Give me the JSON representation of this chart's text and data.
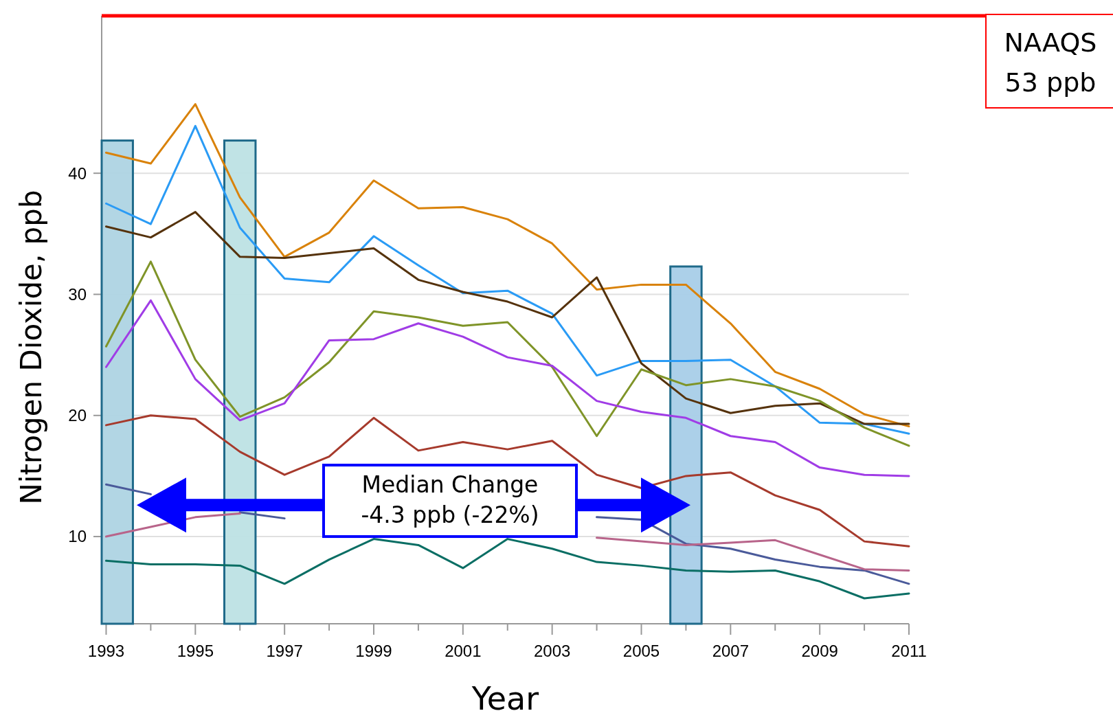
{
  "chart_data": {
    "type": "line",
    "xlabel": "Year",
    "ylabel": "Nitrogen Dioxide, ppb",
    "x": [
      1993,
      1994,
      1995,
      1996,
      1997,
      1998,
      1999,
      2000,
      2001,
      2002,
      2003,
      2004,
      2005,
      2006,
      2007,
      2008,
      2009,
      2010,
      2011
    ],
    "xlim": [
      1992.9,
      2011
    ],
    "ylim": [
      2.8,
      53
    ],
    "xticks": [
      1993,
      {
        "value": 1994,
        "label": null
      },
      1995,
      {
        "value": 1996,
        "label": null
      },
      1997,
      {
        "value": 1998,
        "label": null
      },
      1999,
      {
        "value": 2000,
        "label": null
      },
      2001,
      {
        "value": 2002,
        "label": null
      },
      2003,
      {
        "value": 2004,
        "label": null
      },
      2005,
      {
        "value": 2006,
        "label": null
      },
      2007,
      {
        "value": 2008,
        "label": null
      },
      2009,
      {
        "value": 2010,
        "label": null
      },
      2011
    ],
    "yticks": [
      10,
      20,
      30,
      40
    ],
    "grid": "y",
    "series": [
      {
        "type": "bar",
        "x": [
          1993.25,
          1996,
          2006
        ],
        "values": [
          42.7,
          42.7,
          32.3
        ],
        "colors": [
          "#aed4e3",
          "#bde1e4",
          "#a8cde8"
        ]
      },
      {
        "color": "#d9820a",
        "values": [
          41.7,
          40.8,
          45.7,
          38.0,
          33.1,
          35.1,
          39.4,
          37.1,
          37.2,
          36.2,
          34.2,
          30.4,
          30.8,
          30.8,
          27.6,
          23.6,
          22.2,
          20.1,
          19.1
        ]
      },
      {
        "color": "#2a9bf5",
        "values": [
          37.5,
          35.8,
          43.9,
          35.5,
          31.3,
          31.0,
          34.8,
          32.4,
          30.1,
          30.3,
          28.4,
          23.3,
          24.5,
          24.5,
          24.6,
          22.4,
          19.4,
          19.3,
          18.5
        ]
      },
      {
        "color": "#55320c",
        "values": [
          35.6,
          34.7,
          36.8,
          33.1,
          33.0,
          33.4,
          33.8,
          31.2,
          30.2,
          29.4,
          28.1,
          31.4,
          24.3,
          21.4,
          20.2,
          20.8,
          21.0,
          19.3,
          19.3
        ]
      },
      {
        "color": "#7f9428",
        "values": [
          25.7,
          32.7,
          24.6,
          19.9,
          21.5,
          24.4,
          28.6,
          28.1,
          27.4,
          27.7,
          24.0,
          18.3,
          23.8,
          22.5,
          23.0,
          22.4,
          21.2,
          19.0,
          17.5
        ]
      },
      {
        "color": "#a03ce6",
        "values": [
          24.0,
          29.5,
          23.0,
          19.6,
          21.0,
          26.2,
          26.3,
          27.6,
          26.5,
          24.8,
          24.1,
          21.2,
          20.3,
          19.8,
          18.3,
          17.8,
          15.7,
          15.1,
          15.0
        ]
      },
      {
        "color": "#a63a2c",
        "values": [
          19.2,
          20.0,
          19.7,
          17.0,
          15.1,
          16.6,
          19.8,
          17.1,
          17.8,
          17.2,
          17.9,
          15.1,
          14.0,
          15.0,
          15.3,
          13.4,
          12.2,
          9.6,
          9.2
        ]
      },
      {
        "color": "#4a5a9a",
        "values": [
          14.3,
          13.5,
          null,
          12.0,
          11.5,
          null,
          null,
          null,
          null,
          null,
          null,
          11.6,
          11.4,
          9.4,
          9.0,
          8.1,
          7.5,
          7.2,
          6.1
        ]
      },
      {
        "color": "#b8648a",
        "values": [
          10.0,
          10.8,
          11.6,
          11.9,
          null,
          null,
          null,
          null,
          null,
          null,
          null,
          9.9,
          9.6,
          9.3,
          9.5,
          9.7,
          8.5,
          7.3,
          7.2
        ]
      },
      {
        "color": "#0a6e64",
        "values": [
          8.0,
          7.7,
          7.7,
          7.6,
          6.1,
          8.1,
          9.8,
          9.3,
          7.4,
          9.8,
          9.0,
          7.9,
          7.6,
          7.2,
          7.1,
          7.2,
          6.3,
          4.9,
          5.3
        ]
      }
    ],
    "ref_lines": [
      {
        "axis": "y",
        "value": 53,
        "label": "NAAQS\n53 ppb",
        "color": "#ff0000"
      }
    ],
    "annotations": [
      "Median Change\n-4.3 ppb (-22%)"
    ]
  }
}
